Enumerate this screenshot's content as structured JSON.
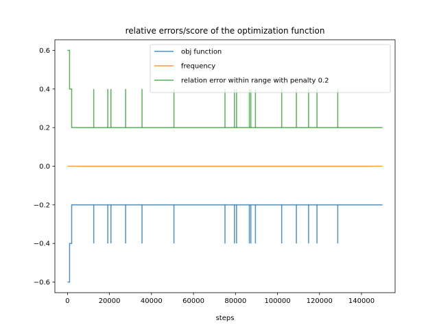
{
  "chart_data": {
    "type": "line",
    "title": "relative errors/score of the optimization function",
    "xlabel": "steps",
    "ylabel": "",
    "xlim": [
      -6000,
      156000
    ],
    "ylim": [
      -0.655,
      0.655
    ],
    "xticks": [
      0,
      20000,
      40000,
      60000,
      80000,
      100000,
      120000,
      140000
    ],
    "yticks": [
      -0.6,
      -0.4,
      -0.2,
      0.0,
      0.2,
      0.4,
      0.6
    ],
    "ytick_labels": [
      "−0.6",
      "−0.4",
      "−0.2",
      "0.0",
      "0.2",
      "0.4",
      "0.6"
    ],
    "legend_position": "top-right",
    "grid": false,
    "spike_steps": [
      12500,
      19200,
      20700,
      27700,
      35500,
      50700,
      75000,
      79500,
      80500,
      86600,
      87300,
      89500,
      102000,
      109000,
      114800,
      118800,
      128700
    ],
    "series": [
      {
        "name": "obj function",
        "color": "#1f77b4",
        "points": [
          [
            0,
            -0.6
          ],
          [
            1000,
            -0.6
          ],
          [
            1000,
            -0.4
          ],
          [
            2000,
            -0.4
          ],
          [
            2000,
            -0.2
          ],
          [
            150000,
            -0.2
          ]
        ],
        "spike_value": -0.4
      },
      {
        "name": "frequency",
        "color": "#ff7f0e",
        "points": [
          [
            0,
            0.0
          ],
          [
            150000,
            0.0
          ]
        ]
      },
      {
        "name": "relation error within range with penalty 0.2",
        "color": "#2ca02c",
        "points": [
          [
            0,
            0.6
          ],
          [
            1000,
            0.6
          ],
          [
            1000,
            0.4
          ],
          [
            2000,
            0.4
          ],
          [
            2000,
            0.2
          ],
          [
            150000,
            0.2
          ]
        ],
        "spike_value": 0.4
      }
    ]
  }
}
